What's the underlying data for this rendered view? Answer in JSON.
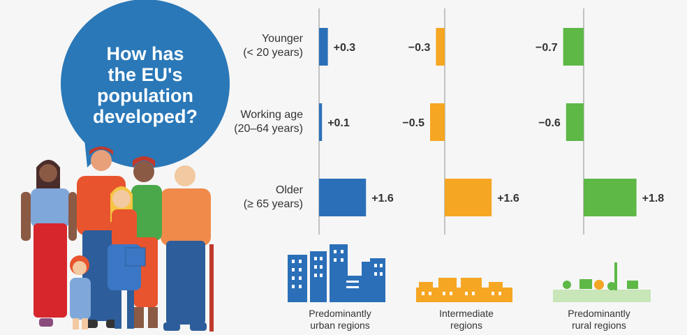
{
  "headline": {
    "lines": [
      "How has",
      "the EU's",
      "population",
      "developed?"
    ]
  },
  "colors": {
    "bubble": "#2a78b8",
    "urban": "#2b6fb8",
    "intermediate": "#f5a623",
    "rural": "#5db846",
    "axis": "#b0b0b0"
  },
  "chart_data": {
    "type": "bar",
    "orientation": "horizontal",
    "categories": [
      {
        "lines": [
          "Younger",
          "(< 20 years)"
        ]
      },
      {
        "lines": [
          "Working age",
          "(20–64 years)"
        ]
      },
      {
        "lines": [
          "Older",
          "(≥ 65 years)"
        ]
      }
    ],
    "series": [
      {
        "name": "Predominantly urban regions",
        "name_lines": [
          "Predominantly",
          "urban regions"
        ],
        "color": "#2b6fb8",
        "icon": "city-skyline-icon",
        "values": [
          0.3,
          0.1,
          1.6
        ],
        "labels": [
          "+0.3",
          "+0.1",
          "+1.6"
        ]
      },
      {
        "name": "Intermediate regions",
        "name_lines": [
          "Intermediate",
          "regions"
        ],
        "color": "#f5a623",
        "icon": "town-icon",
        "values": [
          -0.3,
          -0.5,
          1.6
        ],
        "labels": [
          "−0.3",
          "−0.5",
          "+1.6"
        ]
      },
      {
        "name": "Predominantly rural regions",
        "name_lines": [
          "Predominantly",
          "rural regions"
        ],
        "color": "#5db846",
        "icon": "village-icon",
        "values": [
          -0.7,
          -0.6,
          1.8
        ],
        "labels": [
          "−0.7",
          "−0.6",
          "+1.8"
        ]
      }
    ]
  }
}
